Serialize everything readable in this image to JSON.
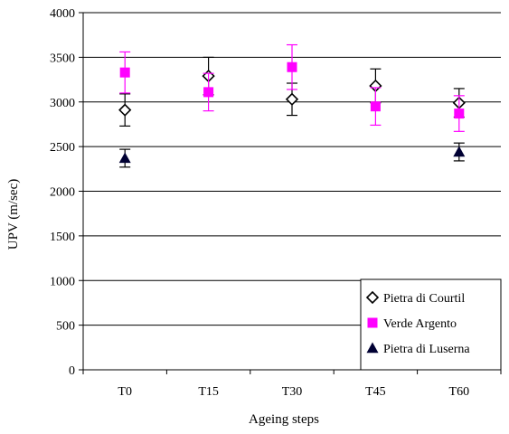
{
  "chart_data": {
    "type": "scatter",
    "categories": [
      "T0",
      "T15",
      "T30",
      "T45",
      "T60"
    ],
    "xlabel": "Ageing steps",
    "ylabel": "UPV (m/sec)",
    "ylim": [
      0,
      4000
    ],
    "yticks": [
      0,
      500,
      1000,
      1500,
      2000,
      2500,
      3000,
      3500,
      4000
    ],
    "grid": "horizontal",
    "legend_position": "bottom-right",
    "series": [
      {
        "name": "Pietra di Courtil",
        "marker": "open-diamond",
        "color": "#000000",
        "values": [
          2910,
          3290,
          3030,
          3180,
          2990
        ],
        "errors": [
          180,
          210,
          180,
          190,
          160
        ]
      },
      {
        "name": "Verde Argento",
        "marker": "square",
        "color": "#ff00ff",
        "values": [
          3330,
          3110,
          3390,
          2950,
          2870
        ],
        "errors": [
          230,
          210,
          250,
          210,
          200
        ]
      },
      {
        "name": "Pietra di Luserna",
        "marker": "triangle",
        "color": "#000033",
        "values": [
          2370,
          null,
          null,
          null,
          2440
        ],
        "errors": [
          100,
          null,
          null,
          null,
          100
        ]
      }
    ]
  }
}
